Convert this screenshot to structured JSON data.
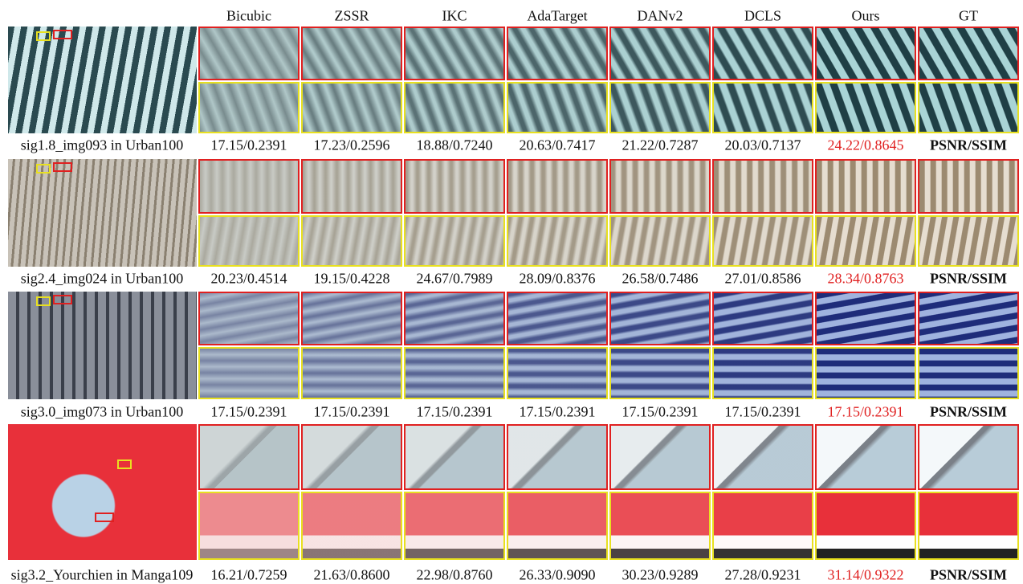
{
  "headers": [
    "Bicubic",
    "ZSSR",
    "IKC",
    "AdaTarget",
    "DANv2",
    "DCLS",
    "Ours",
    "GT"
  ],
  "rows": [
    {
      "label": "sig1.8_img093 in Urban100",
      "metrics": [
        "17.15/0.2391",
        "17.23/0.2596",
        "18.88/0.7240",
        "20.63/0.7417",
        "21.22/0.7287",
        "20.03/0.7137",
        "24.22/0.8645",
        "PSNR/SSIM"
      ]
    },
    {
      "label": "sig2.4_img024 in Urban100",
      "metrics": [
        "20.23/0.4514",
        "19.15/0.4228",
        "24.67/0.7989",
        "28.09/0.8376",
        "26.58/0.7486",
        "27.01/0.8586",
        "28.34/0.8763",
        "PSNR/SSIM"
      ]
    },
    {
      "label": "sig3.0_img073 in Urban100",
      "metrics": [
        "17.15/0.2391",
        "17.15/0.2391",
        "17.15/0.2391",
        "17.15/0.2391",
        "17.15/0.2391",
        "17.15/0.2391",
        "17.15/0.2391",
        "PSNR/SSIM"
      ]
    },
    {
      "label": "sig3.2_Yourchien in Manga109",
      "metrics": [
        "16.21/0.7259",
        "21.63/0.8600",
        "22.98/0.8760",
        "26.33/0.9090",
        "30.23/0.9289",
        "27.28/0.9231",
        "31.14/0.9322",
        "PSNR/SSIM"
      ]
    }
  ]
}
